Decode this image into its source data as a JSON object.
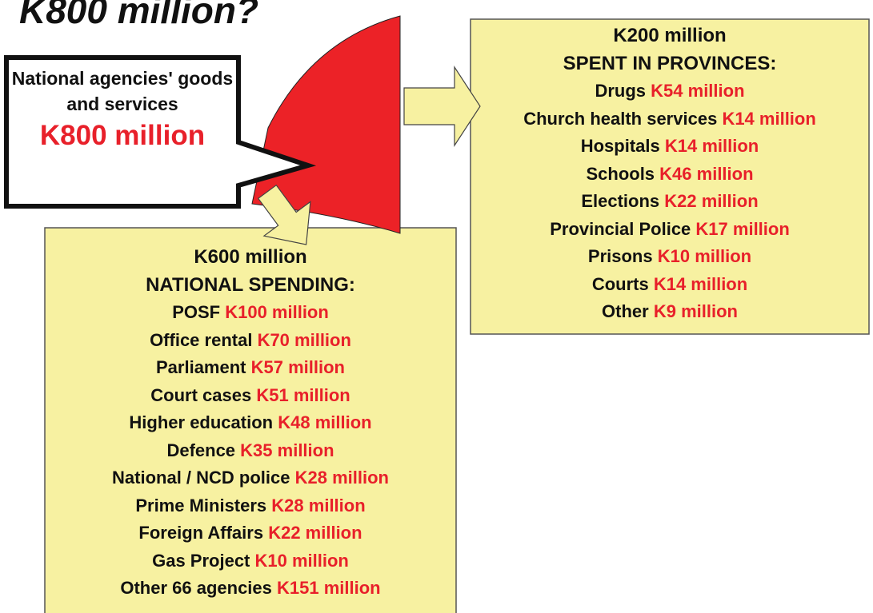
{
  "title": "K800 million?",
  "callout": {
    "label": "National agencies' goods and services",
    "amount": "K800 million"
  },
  "provinces": {
    "heading": [
      "K200 million",
      "SPENT IN PROVINCES:"
    ],
    "items": [
      {
        "name": "Drugs",
        "amount": "K54 million"
      },
      {
        "name": "Church health services",
        "amount": "K14 million"
      },
      {
        "name": "Hospitals",
        "amount": "K14 million"
      },
      {
        "name": "Schools",
        "amount": "K46 million"
      },
      {
        "name": "Elections",
        "amount": "K22 million"
      },
      {
        "name": "Provincial Police",
        "amount": "K17 million"
      },
      {
        "name": "Prisons",
        "amount": "K10 million"
      },
      {
        "name": "Courts",
        "amount": "K14 million"
      },
      {
        "name": "Other",
        "amount": "K9 million"
      }
    ]
  },
  "national": {
    "heading": [
      "K600 million",
      "NATIONAL SPENDING:"
    ],
    "items": [
      {
        "name": "POSF",
        "amount": "K100 million"
      },
      {
        "name": "Office rental",
        "amount": "K70 million"
      },
      {
        "name": "Parliament",
        "amount": "K57 million"
      },
      {
        "name": "Court cases",
        "amount": "K51 million"
      },
      {
        "name": "Higher education",
        "amount": "K48 million"
      },
      {
        "name": "Defence",
        "amount": "K35 million"
      },
      {
        "name": "National / NCD police",
        "amount": "K28 million"
      },
      {
        "name": "Prime Ministers",
        "amount": "K28 million"
      },
      {
        "name": "Foreign Affairs",
        "amount": "K22 million"
      },
      {
        "name": "Gas Project",
        "amount": "K10 million"
      },
      {
        "name": "Other 66 agencies",
        "amount": "K151 million"
      }
    ]
  }
}
